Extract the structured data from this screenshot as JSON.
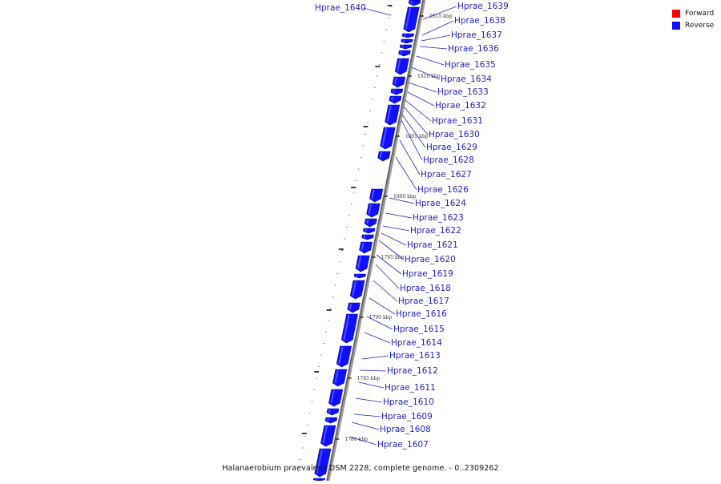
{
  "legend": {
    "forward": {
      "label": "Forward",
      "color": "#ff0000"
    },
    "reverse": {
      "label": "Reverse",
      "color": "#1010ff"
    }
  },
  "caption": "Halanaerobium praevalens DSM 2228, complete genome. - 0..2309262",
  "genes": [
    "Hprae_1640",
    "Hprae_1639",
    "Hprae_1638",
    "Hprae_1637",
    "Hprae_1636",
    "Hprae_1635",
    "Hprae_1634",
    "Hprae_1633",
    "Hprae_1632",
    "Hprae_1631",
    "Hprae_1630",
    "Hprae_1629",
    "Hprae_1628",
    "Hprae_1627",
    "Hprae_1626",
    "Hprae_1624",
    "Hprae_1623",
    "Hprae_1622",
    "Hprae_1621",
    "Hprae_1620",
    "Hprae_1619",
    "Hprae_1618",
    "Hprae_1617",
    "Hprae_1616",
    "Hprae_1615",
    "Hprae_1614",
    "Hprae_1613",
    "Hprae_1612",
    "Hprae_1611",
    "Hprae_1610",
    "Hprae_1609",
    "Hprae_1608",
    "Hprae_1607"
  ],
  "ticks": [
    "1815 kbp",
    "1810 kbp",
    "1805 kbp",
    "1800 kbp",
    "1795 kbp",
    "1790 kbp",
    "1785 kbp",
    "1780 kbp"
  ]
}
